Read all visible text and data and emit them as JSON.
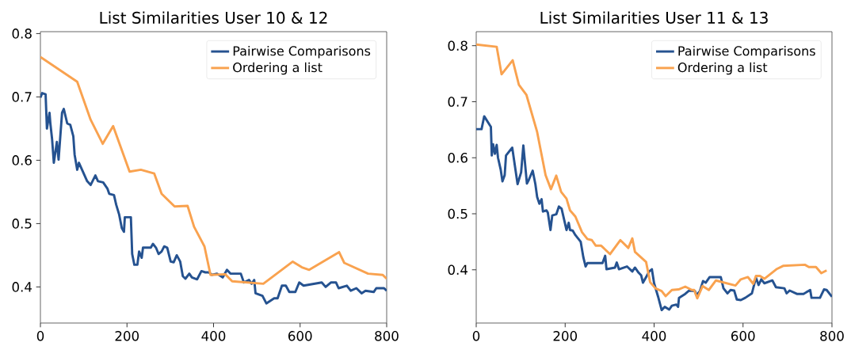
{
  "chart_data": [
    {
      "type": "line",
      "title": "List Similarities User 10 & 12",
      "xlim": [
        0,
        800
      ],
      "ylim": [
        0.343,
        0.803
      ],
      "xticks": [
        0,
        200,
        400,
        600,
        800
      ],
      "yticks": [
        0.4,
        0.5,
        0.6,
        0.7,
        0.8
      ],
      "legend": "top right",
      "series": [
        {
          "name": "Pairwise Comparisons",
          "color": "#255290",
          "x": [
            0,
            4,
            12,
            15,
            21,
            23,
            27,
            31,
            38,
            42,
            50,
            54,
            62,
            69,
            76,
            79,
            85,
            89,
            108,
            116,
            127,
            133,
            145,
            155,
            159,
            170,
            175,
            182,
            188,
            193,
            195,
            209,
            212,
            217,
            224,
            228,
            234,
            237,
            255,
            260,
            267,
            273,
            280,
            286,
            293,
            301,
            308,
            315,
            323,
            329,
            335,
            344,
            350,
            362,
            372,
            381,
            389,
            396,
            408,
            421,
            431,
            439,
            463,
            470,
            482,
            488,
            494,
            497,
            513,
            522,
            531,
            540,
            548,
            558,
            567,
            575,
            589,
            598,
            608,
            650,
            659,
            671,
            683,
            689,
            708,
            717,
            730,
            742,
            751,
            770,
            776,
            794,
            800
          ],
          "values": [
            0.699,
            0.706,
            0.704,
            0.65,
            0.675,
            0.658,
            0.633,
            0.596,
            0.629,
            0.601,
            0.675,
            0.681,
            0.658,
            0.656,
            0.638,
            0.609,
            0.585,
            0.596,
            0.567,
            0.561,
            0.576,
            0.567,
            0.565,
            0.555,
            0.547,
            0.545,
            0.53,
            0.514,
            0.493,
            0.487,
            0.51,
            0.51,
            0.452,
            0.435,
            0.435,
            0.456,
            0.446,
            0.462,
            0.462,
            0.468,
            0.462,
            0.452,
            0.456,
            0.464,
            0.462,
            0.44,
            0.439,
            0.45,
            0.44,
            0.417,
            0.413,
            0.421,
            0.415,
            0.412,
            0.425,
            0.423,
            0.423,
            0.419,
            0.421,
            0.415,
            0.427,
            0.421,
            0.421,
            0.407,
            0.411,
            0.405,
            0.411,
            0.39,
            0.386,
            0.374,
            0.378,
            0.382,
            0.382,
            0.402,
            0.402,
            0.392,
            0.392,
            0.407,
            0.402,
            0.407,
            0.4,
            0.407,
            0.407,
            0.398,
            0.402,
            0.394,
            0.398,
            0.39,
            0.394,
            0.392,
            0.398,
            0.398,
            0.394
          ]
        },
        {
          "name": "Ordering a list",
          "color": "#f9a24f",
          "x": [
            0,
            85,
            116,
            144,
            168,
            206,
            232,
            263,
            280,
            310,
            340,
            355,
            379,
            393,
            427,
            443,
            515,
            583,
            604,
            621,
            690,
            702,
            757,
            791,
            800
          ],
          "values": [
            0.763,
            0.724,
            0.664,
            0.626,
            0.654,
            0.582,
            0.585,
            0.579,
            0.547,
            0.527,
            0.528,
            0.495,
            0.464,
            0.419,
            0.42,
            0.409,
            0.405,
            0.44,
            0.431,
            0.427,
            0.455,
            0.438,
            0.421,
            0.419,
            0.413
          ]
        }
      ]
    },
    {
      "type": "line",
      "title": "List Similarities User 11 & 13",
      "xlim": [
        0,
        800
      ],
      "ylim": [
        0.305,
        0.825
      ],
      "xticks": [
        0,
        200,
        400,
        600,
        800
      ],
      "yticks": [
        0.4,
        0.5,
        0.6,
        0.7,
        0.8
      ],
      "legend": "top right",
      "series": [
        {
          "name": "Pairwise Comparisons",
          "color": "#255290",
          "x": [
            0,
            12,
            18,
            33,
            35,
            38,
            42,
            46,
            49,
            55,
            59,
            64,
            67,
            81,
            93,
            101,
            106,
            114,
            118,
            127,
            133,
            137,
            142,
            147,
            150,
            158,
            161,
            167,
            171,
            180,
            186,
            192,
            199,
            203,
            208,
            211,
            217,
            223,
            235,
            241,
            246,
            250,
            284,
            290,
            293,
            312,
            316,
            321,
            339,
            351,
            357,
            365,
            371,
            375,
            382,
            389,
            395,
            400,
            409,
            417,
            424,
            434,
            440,
            450,
            454,
            456,
            470,
            479,
            492,
            495,
            503,
            510,
            516,
            525,
            550,
            556,
            565,
            572,
            580,
            586,
            595,
            605,
            620,
            629,
            635,
            641,
            648,
            666,
            674,
            693,
            698,
            705,
            721,
            736,
            751,
            754,
            773,
            782,
            788,
            800
          ],
          "values": [
            0.651,
            0.651,
            0.674,
            0.655,
            0.604,
            0.624,
            0.607,
            0.623,
            0.6,
            0.579,
            0.558,
            0.569,
            0.604,
            0.618,
            0.553,
            0.574,
            0.622,
            0.554,
            0.56,
            0.577,
            0.553,
            0.53,
            0.518,
            0.526,
            0.504,
            0.506,
            0.502,
            0.471,
            0.497,
            0.499,
            0.513,
            0.509,
            0.485,
            0.471,
            0.484,
            0.471,
            0.47,
            0.462,
            0.45,
            0.422,
            0.406,
            0.412,
            0.412,
            0.425,
            0.401,
            0.404,
            0.413,
            0.401,
            0.406,
            0.397,
            0.404,
            0.395,
            0.39,
            0.377,
            0.387,
            0.397,
            0.401,
            0.376,
            0.352,
            0.328,
            0.334,
            0.329,
            0.336,
            0.338,
            0.334,
            0.35,
            0.357,
            0.363,
            0.362,
            0.355,
            0.362,
            0.38,
            0.377,
            0.387,
            0.387,
            0.367,
            0.358,
            0.364,
            0.363,
            0.347,
            0.346,
            0.35,
            0.358,
            0.386,
            0.373,
            0.383,
            0.376,
            0.381,
            0.369,
            0.367,
            0.358,
            0.363,
            0.357,
            0.357,
            0.364,
            0.35,
            0.35,
            0.365,
            0.364,
            0.352
          ]
        },
        {
          "name": "Ordering a list",
          "color": "#f9a24f",
          "x": [
            0,
            46,
            57,
            82,
            96,
            113,
            137,
            156,
            168,
            180,
            191,
            203,
            211,
            223,
            238,
            250,
            260,
            269,
            281,
            301,
            324,
            342,
            351,
            357,
            382,
            391,
            403,
            417,
            426,
            440,
            455,
            470,
            485,
            490,
            497,
            509,
            523,
            539,
            583,
            595,
            611,
            623,
            629,
            638,
            648,
            675,
            690,
            739,
            748,
            764,
            776,
            788
          ],
          "values": [
            0.802,
            0.798,
            0.749,
            0.774,
            0.73,
            0.712,
            0.646,
            0.569,
            0.544,
            0.568,
            0.539,
            0.527,
            0.506,
            0.495,
            0.467,
            0.455,
            0.453,
            0.443,
            0.443,
            0.428,
            0.453,
            0.439,
            0.456,
            0.432,
            0.414,
            0.378,
            0.367,
            0.362,
            0.353,
            0.364,
            0.365,
            0.37,
            0.364,
            0.364,
            0.349,
            0.371,
            0.364,
            0.381,
            0.372,
            0.383,
            0.387,
            0.375,
            0.389,
            0.389,
            0.384,
            0.401,
            0.407,
            0.409,
            0.405,
            0.405,
            0.394,
            0.399
          ]
        }
      ]
    }
  ]
}
